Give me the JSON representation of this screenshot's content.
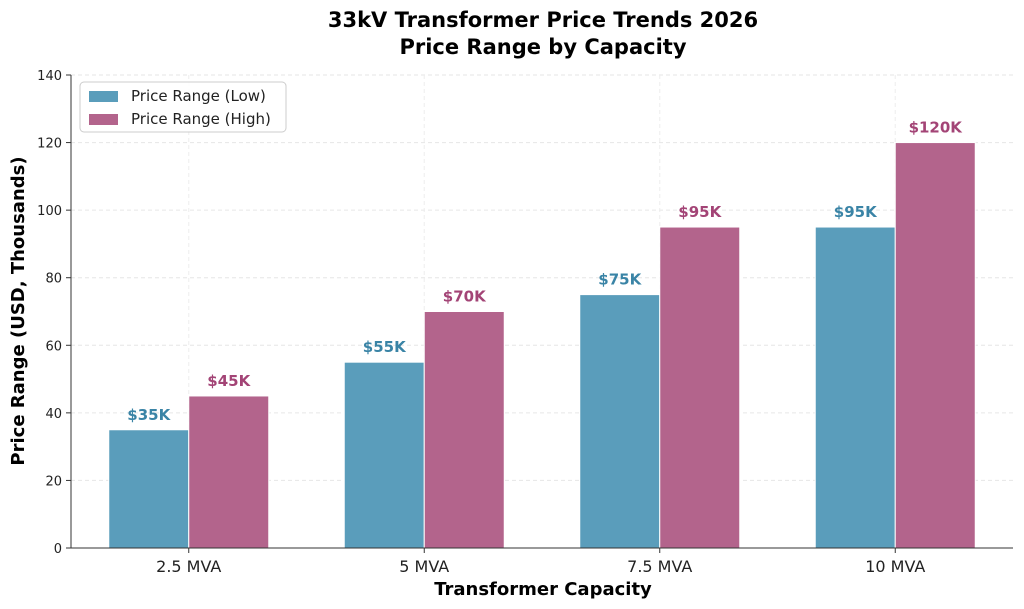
{
  "chart_data": {
    "type": "bar",
    "title": "33kV Transformer Price Trends 2026",
    "subtitle": "Price Range by Capacity",
    "xlabel": "Transformer Capacity",
    "ylabel": "Price Range (USD, Thousands)",
    "categories": [
      "2.5 MVA",
      "5 MVA",
      "7.5 MVA",
      "10 MVA"
    ],
    "ylim": [
      0,
      140
    ],
    "yticks": [
      0,
      20,
      40,
      60,
      80,
      100,
      120,
      140
    ],
    "grid": true,
    "legend_position": "top-left",
    "series": [
      {
        "name": "Price Range (Low)",
        "color": "#5a9dbb",
        "label_color": "#3a84a6",
        "values": [
          35,
          55,
          75,
          95
        ],
        "labels": [
          "$35K",
          "$55K",
          "$75K",
          "$95K"
        ]
      },
      {
        "name": "Price Range (High)",
        "color": "#b3648c",
        "label_color": "#a34476",
        "values": [
          45,
          70,
          95,
          120
        ],
        "labels": [
          "$45K",
          "$70K",
          "$95K",
          "$120K"
        ]
      }
    ]
  }
}
